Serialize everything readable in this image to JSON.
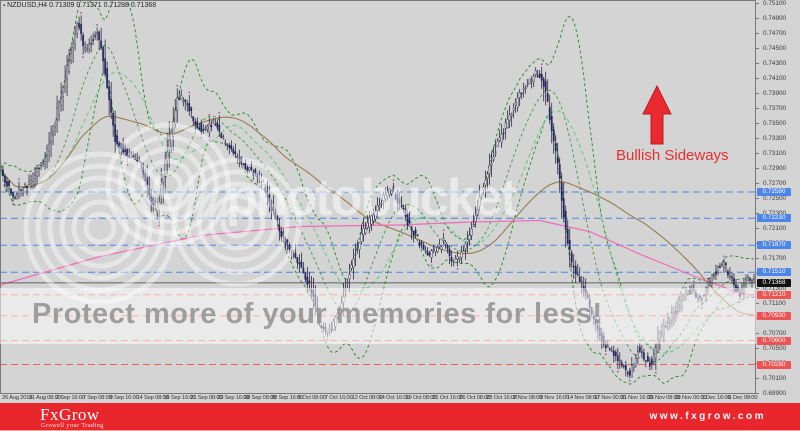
{
  "chart": {
    "marker": "▪",
    "title": "NZDUSD,H4  0.71309 0.71371 0.71288 0.71368"
  },
  "annotation": {
    "label": "Bullish Sideways",
    "arrow_color": "#ea2a2e",
    "text_color": "#e43030"
  },
  "watermark": {
    "logo_text": "photobucket",
    "strip_text": "Protect more of your memories for less!"
  },
  "banner": {
    "brand": "FxGrow",
    "tagline": "Growell your Trading",
    "url": "www.fxgrow.com",
    "bg": "#e8262b"
  },
  "chart_data": {
    "type": "candlestick",
    "symbol": "NZDUSD",
    "timeframe": "H4",
    "ohlc_display": {
      "open": "0.71309",
      "high": "0.71371",
      "low": "0.71288",
      "close": "0.71368"
    },
    "y_axis": {
      "min": 0.699,
      "max": 0.751,
      "tick_step": 0.002,
      "labels": [
        "0.75100",
        "0.74900",
        "0.74700",
        "0.74500",
        "0.74300",
        "0.74100",
        "0.73900",
        "0.73700",
        "0.73500",
        "0.73300",
        "0.73100",
        "0.72900",
        "0.72700",
        "0.72500",
        "0.72300",
        "0.72100",
        "0.71900",
        "0.71700",
        "0.71500",
        "0.71300",
        "0.71100",
        "0.70900",
        "0.70700",
        "0.70500",
        "0.70300",
        "0.70100",
        "0.69900"
      ]
    },
    "x_axis": {
      "labels": [
        "26 Aug 2016",
        "31 Aug 08:00",
        "2 Sep 16:00",
        "7 Sep 08:00",
        "9 Sep 16:00",
        "14 Sep 08:00",
        "16 Sep 16:00",
        "21 Sep 08:00",
        "23 Sep 16:00",
        "28 Sep 08:00",
        "30 Sep 16:00",
        "5 Oct 08:00",
        "7 Oct 16:00",
        "12 Oct 08:00",
        "14 Oct 16:00",
        "19 Oct 08:00",
        "21 Oct 16:00",
        "26 Oct 08:00",
        "28 Oct 16:00",
        "2 Nov 08:00",
        "9 Nov 16:00",
        "14 Nov 08:00",
        "17 Nov 00:00",
        "21 Nov 16:00",
        "25 Nov 08:00",
        "29 Nov 00:00",
        "1 Dec 16:00",
        "6 Dec 08:00"
      ]
    },
    "price_path": [
      [
        0,
        0.729
      ],
      [
        12,
        0.7252
      ],
      [
        28,
        0.7268
      ],
      [
        45,
        0.7305
      ],
      [
        60,
        0.738
      ],
      [
        70,
        0.744
      ],
      [
        78,
        0.7487
      ],
      [
        84,
        0.7445
      ],
      [
        92,
        0.7458
      ],
      [
        97,
        0.7476
      ],
      [
        105,
        0.742
      ],
      [
        115,
        0.733
      ],
      [
        128,
        0.7308
      ],
      [
        140,
        0.73
      ],
      [
        150,
        0.725
      ],
      [
        157,
        0.7232
      ],
      [
        165,
        0.7298
      ],
      [
        172,
        0.734
      ],
      [
        178,
        0.7385
      ],
      [
        186,
        0.738
      ],
      [
        195,
        0.735
      ],
      [
        205,
        0.7338
      ],
      [
        215,
        0.7352
      ],
      [
        225,
        0.7322
      ],
      [
        235,
        0.7308
      ],
      [
        245,
        0.729
      ],
      [
        255,
        0.7282
      ],
      [
        263,
        0.727
      ],
      [
        272,
        0.7235
      ],
      [
        282,
        0.72
      ],
      [
        292,
        0.7178
      ],
      [
        302,
        0.7155
      ],
      [
        312,
        0.7125
      ],
      [
        320,
        0.708
      ],
      [
        328,
        0.707
      ],
      [
        336,
        0.7088
      ],
      [
        345,
        0.713
      ],
      [
        355,
        0.7178
      ],
      [
        365,
        0.721
      ],
      [
        375,
        0.723
      ],
      [
        385,
        0.7255
      ],
      [
        392,
        0.7262
      ],
      [
        400,
        0.7242
      ],
      [
        410,
        0.721
      ],
      [
        420,
        0.719
      ],
      [
        428,
        0.7172
      ],
      [
        436,
        0.718
      ],
      [
        444,
        0.7192
      ],
      [
        452,
        0.7165
      ],
      [
        460,
        0.7172
      ],
      [
        470,
        0.72
      ],
      [
        480,
        0.725
      ],
      [
        490,
        0.7295
      ],
      [
        500,
        0.733
      ],
      [
        510,
        0.7358
      ],
      [
        520,
        0.7388
      ],
      [
        530,
        0.7405
      ],
      [
        537,
        0.7418
      ],
      [
        545,
        0.7398
      ],
      [
        552,
        0.734
      ],
      [
        558,
        0.729
      ],
      [
        565,
        0.7215
      ],
      [
        572,
        0.716
      ],
      [
        580,
        0.714
      ],
      [
        590,
        0.7105
      ],
      [
        600,
        0.7065
      ],
      [
        608,
        0.7048
      ],
      [
        615,
        0.704
      ],
      [
        622,
        0.7026
      ],
      [
        630,
        0.7014
      ],
      [
        638,
        0.7048
      ],
      [
        645,
        0.7035
      ],
      [
        652,
        0.7028
      ],
      [
        660,
        0.7068
      ],
      [
        668,
        0.7085
      ],
      [
        676,
        0.71
      ],
      [
        684,
        0.7118
      ],
      [
        692,
        0.7128
      ],
      [
        700,
        0.7112
      ],
      [
        708,
        0.7138
      ],
      [
        716,
        0.7152
      ],
      [
        724,
        0.7162
      ],
      [
        732,
        0.7138
      ],
      [
        740,
        0.712
      ],
      [
        747,
        0.7145
      ],
      [
        755,
        0.7137
      ]
    ],
    "pink_ma_path": [
      [
        0,
        0.7134
      ],
      [
        100,
        0.7172
      ],
      [
        200,
        0.72
      ],
      [
        300,
        0.7212
      ],
      [
        400,
        0.7214
      ],
      [
        470,
        0.7218
      ],
      [
        540,
        0.722
      ],
      [
        590,
        0.7205
      ],
      [
        640,
        0.7175
      ],
      [
        690,
        0.7148
      ],
      [
        730,
        0.7128
      ],
      [
        755,
        0.7118
      ]
    ],
    "levels": {
      "resistance": [
        {
          "price": 0.7258,
          "label": "0.72580"
        },
        {
          "price": 0.7223,
          "label": "0.72230"
        },
        {
          "price": 0.7187,
          "label": "0.71870"
        },
        {
          "price": 0.7151,
          "label": "0.71510"
        }
      ],
      "support": [
        {
          "price": 0.7121,
          "label": "0.71210"
        },
        {
          "price": 0.7093,
          "label": "0.70930"
        },
        {
          "price": 0.706,
          "label": "0.70600"
        },
        {
          "price": 0.7028,
          "label": "0.70280"
        }
      ],
      "current": {
        "price": 0.71368,
        "label": "0.71368"
      }
    },
    "indicators": [
      {
        "name": "bollinger_bands",
        "period": 20,
        "deviation": 2,
        "color": "#1f8a1f",
        "style": "dashed"
      },
      {
        "name": "ma_fast_green",
        "period": 34,
        "color": "#58c878",
        "style": "dashed"
      },
      {
        "name": "ma_brown",
        "period": 89,
        "color": "#9a7b4f",
        "style": "solid"
      },
      {
        "name": "ma_pink",
        "color": "#f06cb4",
        "style": "solid"
      },
      {
        "name": "fractal_dots",
        "color": "#c738c7"
      }
    ],
    "colors": {
      "resistance": "#4d84e8",
      "support": "#ef5252",
      "current_bg": "#111111",
      "bull": "#f2f2f6",
      "bear": "#232a7e",
      "wick": "#15152e",
      "border": "#787878",
      "dots": "#b44ab4"
    }
  }
}
